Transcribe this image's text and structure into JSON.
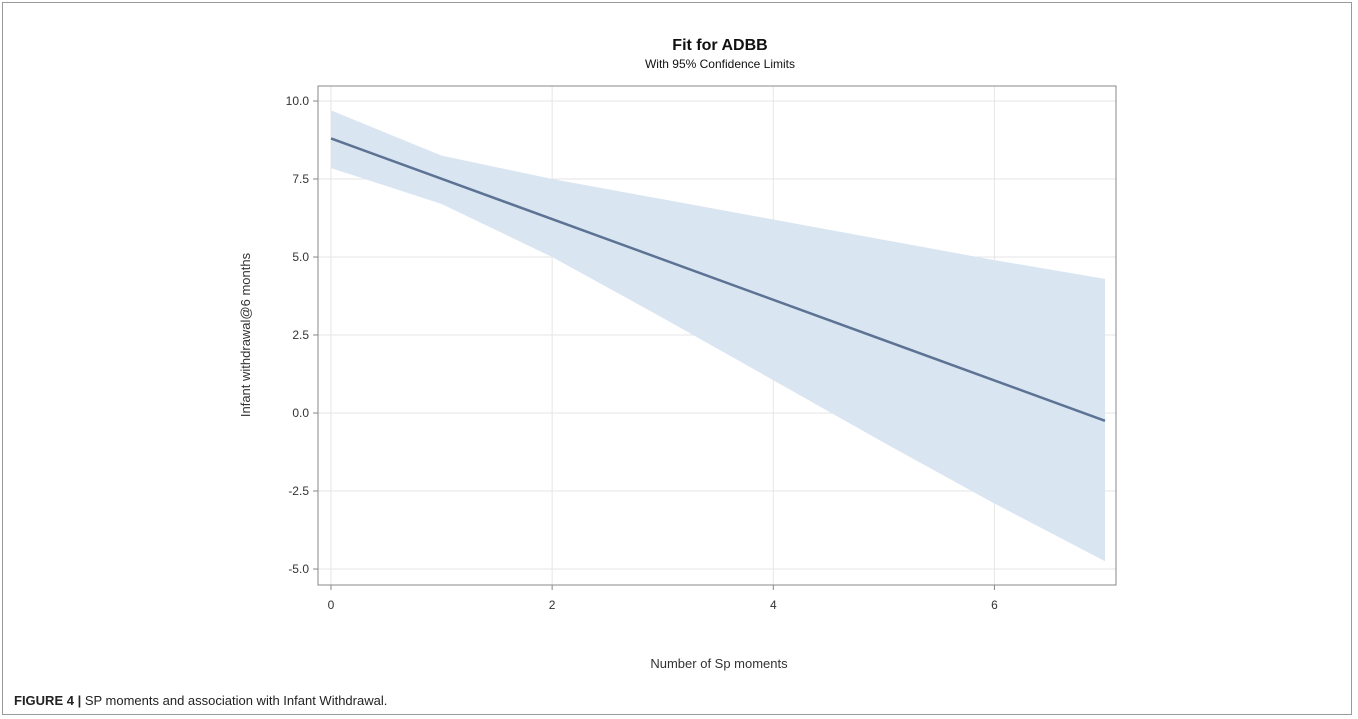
{
  "figure": {
    "caption_label": "FIGURE 4 |",
    "caption_text": " SP moments and association with Infant Withdrawal."
  },
  "chart_data": {
    "type": "line",
    "title": "Fit for ADBB",
    "subtitle": "With 95% Confidence Limits",
    "xlabel": "Number of Sp moments",
    "ylabel": "Infant withdrawal@6 months",
    "xlim": [
      0,
      7
    ],
    "ylim": [
      -5,
      10
    ],
    "x_ticks": [
      0,
      2,
      4,
      6
    ],
    "x_tick_labels": [
      "0",
      "2",
      "4",
      "6"
    ],
    "y_ticks": [
      -5,
      -2.5,
      0,
      2.5,
      5,
      7.5,
      10
    ],
    "y_tick_labels": [
      "-5.0",
      "-2.5",
      "0.0",
      "2.5",
      "5.0",
      "7.5",
      "10.0"
    ],
    "grid": true,
    "series": [
      {
        "x": [
          0,
          7
        ],
        "y": [
          8.8,
          -0.25
        ],
        "color": "#5c7394"
      }
    ],
    "confidence_band": {
      "x": [
        0,
        1,
        2,
        3,
        4,
        5,
        6,
        7
      ],
      "upper": [
        9.7,
        8.25,
        7.5,
        6.85,
        6.2,
        5.55,
        4.9,
        4.3
      ],
      "lower": [
        7.85,
        6.7,
        5.0,
        3.05,
        1.05,
        -0.95,
        -2.9,
        -4.75
      ],
      "color": "#dae5f2"
    }
  }
}
